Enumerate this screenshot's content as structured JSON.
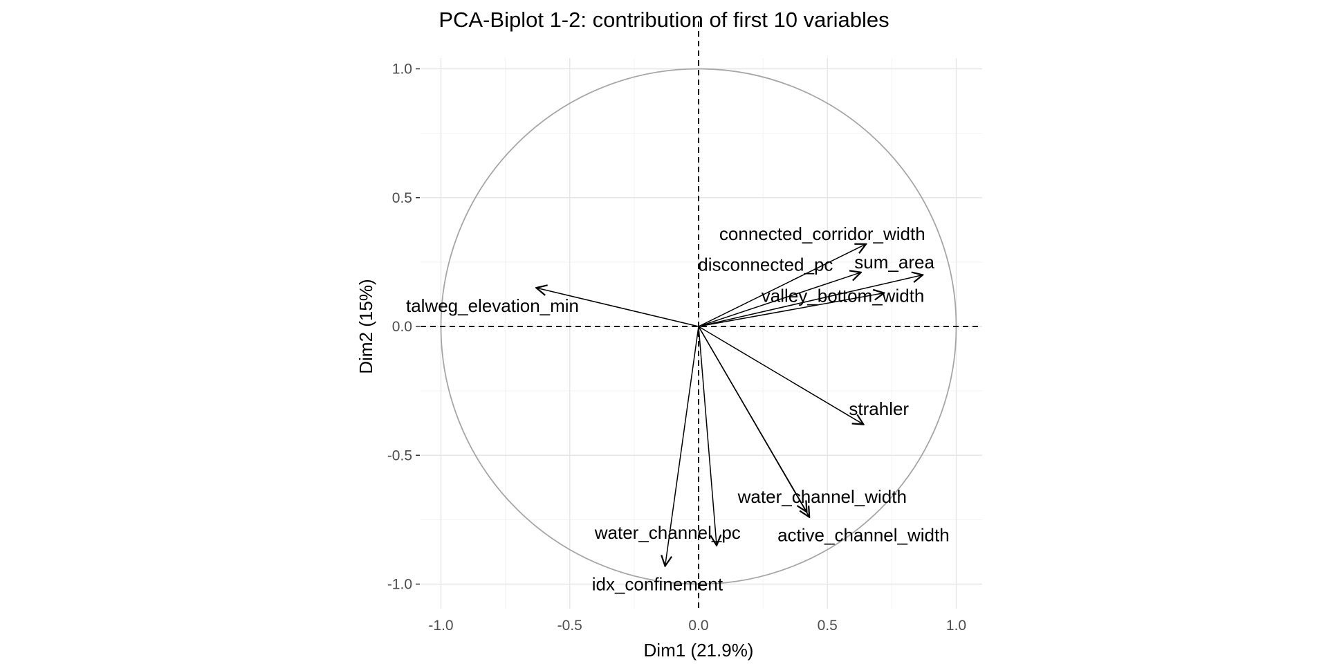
{
  "chart_data": {
    "type": "scatter",
    "subtype": "pca-variable-biplot",
    "title": "PCA-Biplot 1-2: contribution of first 10 variables",
    "xlabel": "Dim1 (21.9%)",
    "ylabel": "Dim2 (15%)",
    "xlim": [
      -1.1,
      1.1
    ],
    "ylim": [
      -1.1,
      1.1
    ],
    "xticks": [
      {
        "value": -1.0,
        "label": "-1.0"
      },
      {
        "value": -0.5,
        "label": "-0.5"
      },
      {
        "value": 0.0,
        "label": "0.0"
      },
      {
        "value": 0.5,
        "label": "0.5"
      },
      {
        "value": 1.0,
        "label": "1.0"
      }
    ],
    "yticks": [
      {
        "value": -1.0,
        "label": "-1.0"
      },
      {
        "value": -0.5,
        "label": "-0.5"
      },
      {
        "value": 0.0,
        "label": "0.0"
      },
      {
        "value": 0.5,
        "label": "0.5"
      },
      {
        "value": 1.0,
        "label": "1.0"
      }
    ],
    "grid": true,
    "unit_circle": true,
    "zero_lines": "dashed",
    "variables": [
      {
        "name": "connected_corridor_width",
        "x": 0.65,
        "y": 0.32,
        "label_x": 0.48,
        "label_y": 0.36
      },
      {
        "name": "disconnected_pc",
        "x": 0.63,
        "y": 0.21,
        "label_x": 0.26,
        "label_y": 0.24
      },
      {
        "name": "sum_area",
        "x": 0.87,
        "y": 0.2,
        "label_x": 0.76,
        "label_y": 0.25
      },
      {
        "name": "valley_bottom_width",
        "x": 0.72,
        "y": 0.13,
        "label_x": 0.56,
        "label_y": 0.12
      },
      {
        "name": "talweg_elevation_min",
        "x": -0.63,
        "y": 0.15,
        "label_x": -0.8,
        "label_y": 0.08
      },
      {
        "name": "strahler",
        "x": 0.64,
        "y": -0.38,
        "label_x": 0.7,
        "label_y": -0.32
      },
      {
        "name": "water_channel_width",
        "x": 0.42,
        "y": -0.72,
        "label_x": 0.48,
        "label_y": -0.66
      },
      {
        "name": "active_channel_width",
        "x": 0.43,
        "y": -0.74,
        "label_x": 0.64,
        "label_y": -0.81
      },
      {
        "name": "water_channel_pc",
        "x": 0.07,
        "y": -0.85,
        "label_x": -0.12,
        "label_y": -0.8
      },
      {
        "name": "idx_confinement",
        "x": -0.13,
        "y": -0.93,
        "label_x": -0.16,
        "label_y": -1.0
      }
    ]
  }
}
